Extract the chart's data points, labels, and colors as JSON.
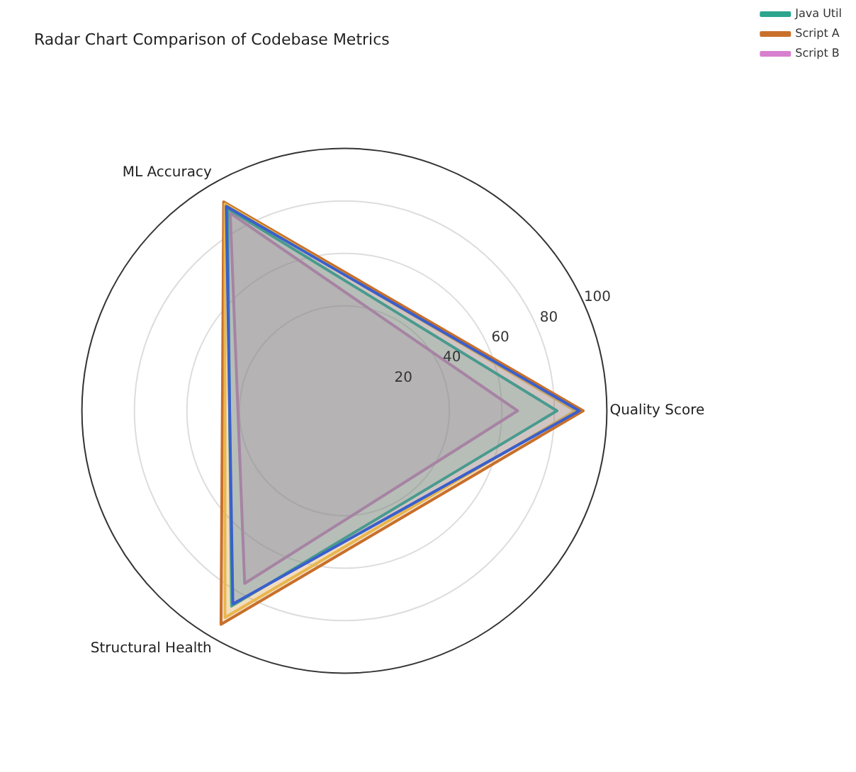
{
  "chart_data": {
    "type": "radar",
    "title": "Radar Chart Comparison of Codebase Metrics",
    "categories": [
      "Quality Score",
      "Structural Health",
      "ML Accuracy"
    ],
    "series": [
      {
        "color": "#3a5fcd",
        "values": [
          89.5,
          85,
          90
        ]
      },
      {
        "color": "#e8b64c",
        "values": [
          88,
          91,
          91
        ]
      },
      {
        "name": "Java Util",
        "color": "#2ca58d",
        "values": [
          81,
          86,
          89
        ]
      },
      {
        "name": "Script A",
        "color": "#c8702a",
        "values": [
          91,
          94,
          92
        ]
      },
      {
        "name": "Script B",
        "color": "#d87fd0",
        "values": [
          66,
          76,
          87
        ]
      }
    ],
    "ylim": [
      0,
      100
    ],
    "yticks": [
      20,
      40,
      60,
      80,
      100
    ],
    "grid": true,
    "legend": "top right"
  }
}
